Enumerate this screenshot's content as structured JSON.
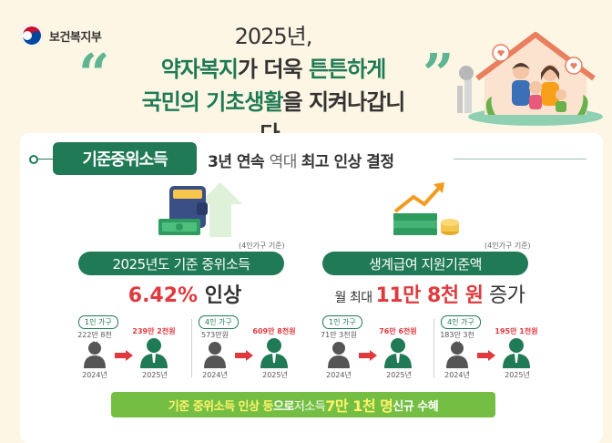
{
  "header": {
    "logo_text": "보건복지부",
    "title_year": "2025년,",
    "line2_hl": "약자복지",
    "line2_mid": "가 더욱 ",
    "line2_end": "튼튼하게",
    "line3_a": "국민의 기초생활",
    "line3_b": "을 지켜나갑니다."
  },
  "section": {
    "title": "기준중위소득",
    "sub_a": "3년 연속 ",
    "sub_light": "역대 ",
    "sub_b": "최고 인상 결정"
  },
  "left": {
    "note": "(4인가구 기준)",
    "pill": "2025년도 기준 중위소득",
    "rate": "6.42%",
    "rate_suffix": " 인상",
    "groups": [
      {
        "tag": "1인 가구",
        "from_value": "222만 8천원",
        "to_value": "239만 2천원",
        "from_year": "2024년",
        "to_year": "2025년"
      },
      {
        "tag": "4인 가구",
        "from_value": "573만원",
        "to_value": "609만 8천원",
        "from_year": "2024년",
        "to_year": "2025년"
      }
    ]
  },
  "right": {
    "note": "(4인가구 기준)",
    "pill": "생계급여 지원기준액",
    "prefix": "월 최대 ",
    "amount": "11만 8천 원",
    "suffix": " 증가",
    "groups": [
      {
        "tag": "1인 가구",
        "from_value": "71만 3천원",
        "to_value": "76만 6천원",
        "from_year": "2024년",
        "to_year": "2025년"
      },
      {
        "tag": "4인 가구",
        "from_value": "183만 3천원",
        "to_value": "195만 1천원",
        "from_year": "2024년",
        "to_year": "2025년"
      }
    ]
  },
  "banner": {
    "a": "기준 중위소득 인상 등",
    "b": "으로 ",
    "c": "저소득 ",
    "d": "7만 1천 명",
    "e": " 신규 수혜"
  },
  "colors": {
    "brand_green": "#1f7a55",
    "accent_red": "#e03a3e",
    "banner_green": "#74bf43",
    "bg": "#fdf6e4"
  },
  "icons": [
    "taegeuk-emblem-icon",
    "wallet-money-icon",
    "money-growth-icon",
    "person-icon",
    "arrow-right-icon",
    "family-house-illustration"
  ]
}
